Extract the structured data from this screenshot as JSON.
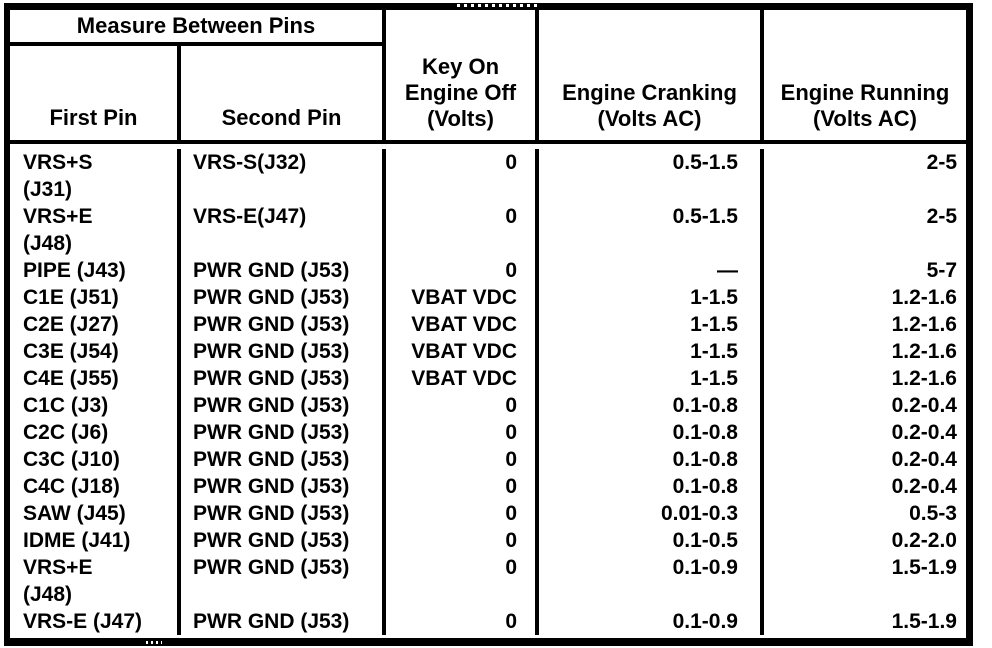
{
  "colors": {
    "ink": "#000000",
    "paper": "#ffffff"
  },
  "table": {
    "header": {
      "measure_between_pins": "Measure Between Pins",
      "first_pin": "First Pin",
      "second_pin": "Second Pin",
      "key_on": "Key On\nEngine Off\n(Volts)",
      "engine_cranking": "Engine Cranking\n(Volts AC)",
      "engine_running": "Engine Running\n(Volts AC)"
    },
    "rows": [
      {
        "first_pin": "VRS+S\n(J31)",
        "second_pin": "VRS-S(J32)",
        "key_on": "0",
        "cranking": "0.5-1.5",
        "running": "2-5"
      },
      {
        "first_pin": "VRS+E\n(J48)",
        "second_pin": "VRS-E(J47)",
        "key_on": "0",
        "cranking": "0.5-1.5",
        "running": "2-5"
      },
      {
        "first_pin": "PIPE (J43)",
        "second_pin": "PWR GND (J53)",
        "key_on": "0",
        "cranking": "—",
        "running": "5-7"
      },
      {
        "first_pin": "C1E (J51)",
        "second_pin": "PWR GND (J53)",
        "key_on": "VBAT VDC",
        "cranking": "1-1.5",
        "running": "1.2-1.6"
      },
      {
        "first_pin": "C2E (J27)",
        "second_pin": "PWR GND (J53)",
        "key_on": "VBAT VDC",
        "cranking": "1-1.5",
        "running": "1.2-1.6"
      },
      {
        "first_pin": "C3E (J54)",
        "second_pin": "PWR GND (J53)",
        "key_on": "VBAT VDC",
        "cranking": "1-1.5",
        "running": "1.2-1.6"
      },
      {
        "first_pin": "C4E (J55)",
        "second_pin": "PWR GND (J53)",
        "key_on": "VBAT VDC",
        "cranking": "1-1.5",
        "running": "1.2-1.6"
      },
      {
        "first_pin": "C1C (J3)",
        "second_pin": "PWR GND (J53)",
        "key_on": "0",
        "cranking": "0.1-0.8",
        "running": "0.2-0.4"
      },
      {
        "first_pin": "C2C (J6)",
        "second_pin": "PWR GND (J53)",
        "key_on": "0",
        "cranking": "0.1-0.8",
        "running": "0.2-0.4"
      },
      {
        "first_pin": "C3C (J10)",
        "second_pin": "PWR GND (J53)",
        "key_on": "0",
        "cranking": "0.1-0.8",
        "running": "0.2-0.4"
      },
      {
        "first_pin": "C4C (J18)",
        "second_pin": "PWR GND (J53)",
        "key_on": "0",
        "cranking": "0.1-0.8",
        "running": "0.2-0.4"
      },
      {
        "first_pin": "SAW (J45)",
        "second_pin": "PWR GND (J53)",
        "key_on": "0",
        "cranking": "0.01-0.3",
        "running": "0.5-3"
      },
      {
        "first_pin": "IDME (J41)",
        "second_pin": "PWR GND (J53)",
        "key_on": "0",
        "cranking": "0.1-0.5",
        "running": "0.2-2.0"
      },
      {
        "first_pin": "VRS+E\n(J48)",
        "second_pin": "PWR GND (J53)",
        "key_on": "0",
        "cranking": "0.1-0.9",
        "running": "1.5-1.9"
      },
      {
        "first_pin": "VRS-E (J47)",
        "second_pin": "PWR GND (J53)",
        "key_on": "0",
        "cranking": "0.1-0.9",
        "running": "1.5-1.9"
      }
    ]
  }
}
